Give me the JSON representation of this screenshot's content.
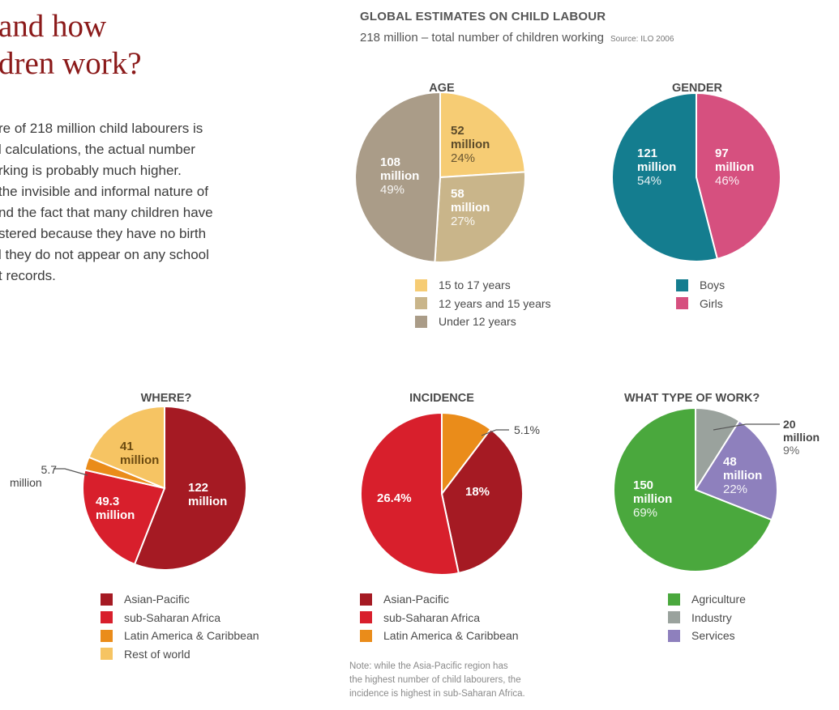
{
  "heading": [
    "and how",
    "dren work?"
  ],
  "intro": [
    "re of 218 million child labourers is",
    "l calculations, the actual number",
    "rking is probably much higher.",
    "the invisible and informal nature of",
    "nd the fact that many children have",
    "stered because they have no birth",
    "l they do not appear on any school",
    "t records."
  ],
  "infographic": {
    "title": "GLOBAL ESTIMATES ON CHILD LABOUR",
    "subtitle": "218 million – total number of children working",
    "source": "Source: ILO  2006",
    "note": [
      "Note: while the Asia-Pacific region has",
      "the highest number of child labourers, the",
      "incidence is highest in sub-Saharan Africa."
    ]
  },
  "chart_data": [
    {
      "id": "age",
      "type": "pie",
      "title": "AGE",
      "slices": [
        {
          "name": "15 to 17 years",
          "value": 24,
          "label": [
            "52",
            "million",
            "24%"
          ],
          "color": "#f6cc74"
        },
        {
          "name": "12 years and 15 years",
          "value": 27,
          "label": [
            "58",
            "million",
            "27%"
          ],
          "color": "#c9b58a"
        },
        {
          "name": "Under 12 years",
          "value": 49,
          "label": [
            "108",
            "million",
            "49%"
          ],
          "color": "#aa9c88"
        }
      ]
    },
    {
      "id": "gender",
      "type": "pie",
      "title": "GENDER",
      "slices": [
        {
          "name": "Girls",
          "value": 46,
          "label": [
            "97",
            "million",
            "46%"
          ],
          "color": "#d6507f"
        },
        {
          "name": "Boys",
          "value": 54,
          "label": [
            "121",
            "million",
            "54%"
          ],
          "color": "#147d8f"
        }
      ],
      "legend_order": [
        "Boys",
        "Girls"
      ]
    },
    {
      "id": "where",
      "type": "pie",
      "title": "WHERE?",
      "slices": [
        {
          "name": "Asian-Pacific",
          "value": 122,
          "label": [
            "122",
            "million"
          ],
          "color": "#a51a23"
        },
        {
          "name": "sub-Saharan Africa",
          "value": 49.3,
          "label": [
            "49.3",
            "million"
          ],
          "color": "#d81f2c"
        },
        {
          "name": "Latin America & Caribbean",
          "value": 5.7,
          "label": [
            "5.7",
            "million"
          ],
          "color": "#ea8c1a"
        },
        {
          "name": "Rest of world",
          "value": 41,
          "label": [
            "41",
            "million"
          ],
          "color": "#f6c463"
        }
      ]
    },
    {
      "id": "incidence",
      "type": "pie",
      "title": "INCIDENCE",
      "slices": [
        {
          "name": "Latin America & Caribbean",
          "value": 5.1,
          "label": [
            "5.1%"
          ],
          "color": "#ea8c1a"
        },
        {
          "name": "Asian-Pacific",
          "value": 18,
          "label": [
            "18%"
          ],
          "color": "#a51a23"
        },
        {
          "name": "sub-Saharan Africa",
          "value": 26.4,
          "label": [
            "26.4%"
          ],
          "color": "#d81f2c"
        }
      ],
      "legend_order": [
        "Asian-Pacific",
        "sub-Saharan Africa",
        "Latin America & Caribbean"
      ]
    },
    {
      "id": "work",
      "type": "pie",
      "title": "WHAT TYPE OF WORK?",
      "slices": [
        {
          "name": "Industry",
          "value": 9,
          "label": [
            "20",
            "million",
            "9%"
          ],
          "color": "#9aa29d"
        },
        {
          "name": "Services",
          "value": 22,
          "label": [
            "48",
            "million",
            "22%"
          ],
          "color": "#8e80bd"
        },
        {
          "name": "Agriculture",
          "value": 69,
          "label": [
            "150",
            "million",
            "69%"
          ],
          "color": "#4aa83d"
        }
      ],
      "legend_order": [
        "Agriculture",
        "Industry",
        "Services"
      ]
    }
  ]
}
